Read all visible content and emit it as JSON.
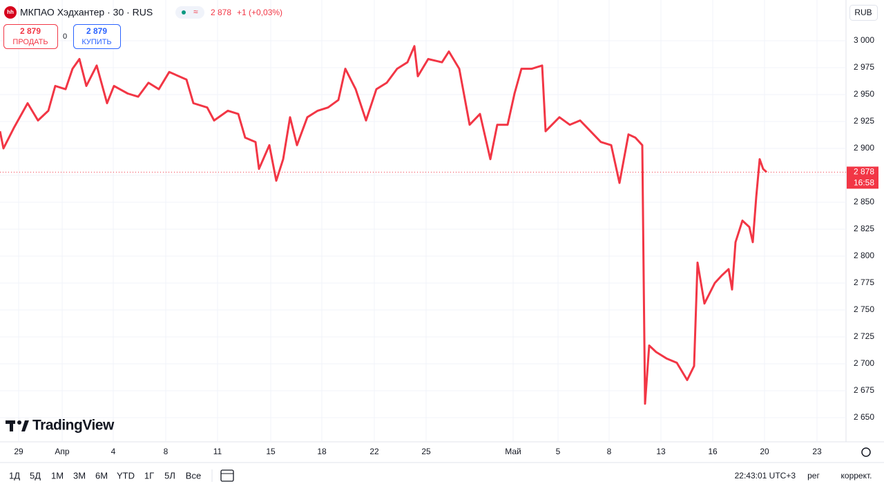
{
  "header": {
    "logo": "hh",
    "title": "МКПАО Хэдхантер · 30 · RUS",
    "price": "2 878",
    "change": "+1 (+0,03%)",
    "sell_price": "2 879",
    "sell": "ПРОДАТЬ",
    "spread": "0",
    "buy_price": "2 879",
    "buy": "КУПИТЬ",
    "currency": "RUB"
  },
  "toolbar": {
    "periods": [
      "1Д",
      "5Д",
      "1М",
      "3М",
      "6М",
      "YTD",
      "1Г",
      "5Л",
      "Все"
    ],
    "clock": "22:43:01 UTC+3",
    "session": "рег",
    "adjust": "коррект."
  },
  "brand": "TradingView",
  "chart_data": {
    "type": "line",
    "x": [
      0,
      0.2,
      0.8,
      1.6,
      2.2,
      2.8,
      3.2,
      3.8,
      4.2,
      4.6,
      5,
      5.6,
      6.2,
      6.6,
      7.4,
      8,
      8.6,
      9.2,
      9.8,
      10.8,
      11.2,
      12,
      12.4,
      13.2,
      13.8,
      14.2,
      14.8,
      15,
      15.6,
      16,
      16.4,
      16.8,
      17.2,
      17.8,
      18.4,
      19,
      19.6,
      20,
      20.6,
      21.2,
      21.8,
      22.4,
      23,
      23.6,
      24,
      24.2,
      24.8,
      25.6,
      26,
      26.6,
      27.2,
      27.8,
      28.4,
      28.8,
      29.4,
      29.8,
      30.2,
      30.8,
      31.4,
      31.6,
      32.4,
      33,
      33.6,
      34.2,
      34.8,
      35.4,
      35.88,
      36.4,
      36.8,
      37.2,
      37.28,
      37.36,
      37.6,
      38,
      38.6,
      39.2,
      39.8,
      40.2,
      40.4,
      40.8,
      41.4,
      41.8,
      42.2,
      42.4,
      42.6,
      43,
      43.4,
      43.6,
      43.8,
      44,
      44.2,
      44.4
    ],
    "series": [
      {
        "name": "МКПАО Хэдхантер",
        "color": "#f23645",
        "values": [
          2916,
          2900,
          2919,
          2942,
          2926,
          2935,
          2958,
          2955,
          2974,
          2983,
          2958,
          2977,
          2942,
          2958,
          2951,
          2948,
          2961,
          2955,
          2971,
          2964,
          2942,
          2938,
          2926,
          2935,
          2932,
          2910,
          2906,
          2881,
          2903,
          2870,
          2890,
          2929,
          2903,
          2929,
          2935,
          2938,
          2945,
          2974,
          2955,
          2926,
          2955,
          2961,
          2974,
          2980,
          2995,
          2967,
          2983,
          2980,
          2990,
          2974,
          2922,
          2932,
          2890,
          2922,
          2922,
          2951,
          2974,
          2974,
          2977,
          2916,
          2929,
          2922,
          2926,
          2916,
          2906,
          2903,
          2868,
          2913,
          2910,
          2903,
          2781,
          2663,
          2717,
          2711,
          2705,
          2701,
          2685,
          2698,
          2794,
          2756,
          2775,
          2782,
          2788,
          2769,
          2813,
          2833,
          2827,
          2813,
          2855,
          2890,
          2881,
          2878
        ]
      }
    ],
    "xlim": [
      0,
      49
    ],
    "xticks": [
      {
        "value": 1.08,
        "label": "29"
      },
      {
        "value": 3.6,
        "label": "Апр"
      },
      {
        "value": 6.56,
        "label": "4"
      },
      {
        "value": 9.6,
        "label": "8"
      },
      {
        "value": 12.6,
        "label": "11"
      },
      {
        "value": 15.68,
        "label": "15"
      },
      {
        "value": 18.64,
        "label": "18"
      },
      {
        "value": 21.68,
        "label": "22"
      },
      {
        "value": 24.68,
        "label": "25"
      },
      {
        "value": 29.72,
        "label": "Май"
      },
      {
        "value": 32.32,
        "label": "5"
      },
      {
        "value": 35.28,
        "label": "8"
      },
      {
        "value": 38.28,
        "label": "13"
      },
      {
        "value": 41.28,
        "label": "16"
      },
      {
        "value": 44.28,
        "label": "20"
      },
      {
        "value": 47.32,
        "label": "23"
      }
    ],
    "ylim": [
      2627.6,
      3018.6
    ],
    "yticks": [
      {
        "value": 2650,
        "label": "2 650"
      },
      {
        "value": 2675,
        "label": "2 675"
      },
      {
        "value": 2700,
        "label": "2 700"
      },
      {
        "value": 2725,
        "label": "2 725"
      },
      {
        "value": 2750,
        "label": "2 750"
      },
      {
        "value": 2775,
        "label": "2 775"
      },
      {
        "value": 2800,
        "label": "2 800"
      },
      {
        "value": 2825,
        "label": "2 825"
      },
      {
        "value": 2850,
        "label": "2 850"
      },
      {
        "value": 2875,
        "label": "2 875"
      },
      {
        "value": 2900,
        "label": "2 900"
      },
      {
        "value": 2925,
        "label": "2 925"
      },
      {
        "value": 2950,
        "label": "2 950"
      },
      {
        "value": 2975,
        "label": "2 975"
      },
      {
        "value": 3000,
        "label": "3 000"
      }
    ],
    "last_price": {
      "value": 2878,
      "label": "2 878"
    },
    "countdown": "16:58",
    "grid": true
  }
}
